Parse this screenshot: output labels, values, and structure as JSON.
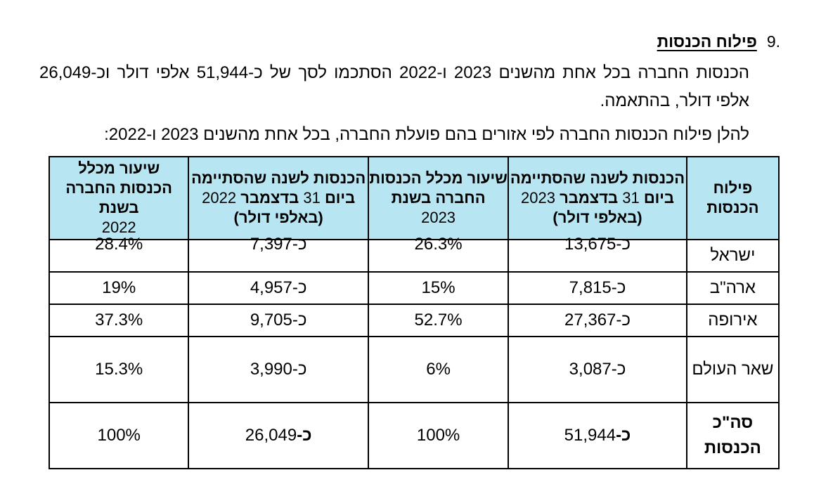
{
  "section": {
    "number": ".9",
    "title": "פילוח הכנסות"
  },
  "paragraph1": "הכנסות החברה בכל אחת מהשנים 2023 ו-2022 הסתכמו לסך של כ-51,944 אלפי דולר וכ-26,049 אלפי דולר, בהתאמה.",
  "paragraph2": "להלן פילוח הכנסות החברה לפי אזורים בהם פועלת החברה, בכל אחת מהשנים 2023 ו-2022:",
  "table": {
    "headers": {
      "region": "פילוח הכנסות",
      "rev2023_bold": "הכנסות לשנה שהסתיימה ביום",
      "rev2023_date_num": "31",
      "rev2023_month": "בדצמבר",
      "rev2023_year": "2023",
      "rev2023_unit": "(באלפי דולר)",
      "pct2023_bold": "שיעור מכלל הכנסות החברה בשנת",
      "pct2023_year": "2023",
      "rev2022_bold": "הכנסות לשנה שהסתיימה ביום",
      "rev2022_date_num": "31",
      "rev2022_month": "בדצמבר",
      "rev2022_year": "2022",
      "rev2022_unit": "(באלפי דולר)",
      "pct2022_bold": "שיעור מכלל הכנסות החברה בשנת",
      "pct2022_year": "2022"
    },
    "rows": [
      {
        "region": "ישראל",
        "rev2023": "כ-13,675",
        "pct2023": "26.3%",
        "rev2022": "כ-7,397",
        "pct2022": "28.4%"
      },
      {
        "region": "ארה\"ב",
        "rev2023": "כ-7,815",
        "pct2023": "15%",
        "rev2022": "כ-4,957",
        "pct2022": "19%"
      },
      {
        "region": "אירופה",
        "rev2023": "כ-27,367",
        "pct2023": "52.7%",
        "rev2022": "כ-9,705",
        "pct2022": "37.3%"
      },
      {
        "region": "שאר העולם",
        "rev2023": "כ-3,087",
        "pct2023": "6%",
        "rev2022": "כ-3,990",
        "pct2022": "15.3%"
      }
    ],
    "total": {
      "region": "סה\"כ הכנסות",
      "rev2023_prefix": "כ-",
      "rev2023_value": "51,944",
      "pct2023": "100%",
      "rev2022_prefix": "כ-",
      "rev2022_value": "26,049",
      "pct2022": "100%"
    }
  }
}
